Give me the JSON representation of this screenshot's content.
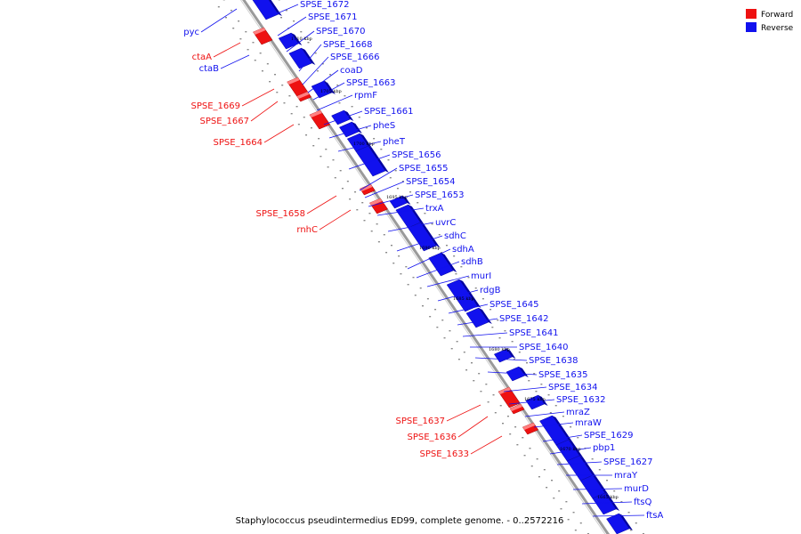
{
  "legend": {
    "forward": {
      "label": "Forward",
      "color": "#ee1111"
    },
    "reverse": {
      "label": "Reverse",
      "color": "#1111ee"
    }
  },
  "caption": "Staphylococcus pseudintermedius ED99, complete genome. - 0..2572216",
  "ticks": [
    "1710 kbp",
    "1705 kbp",
    "1700 kbp",
    "1695 kbp",
    "1690 kbp",
    "1685 kbp",
    "1680 kbp",
    "1675 kbp",
    "1670 kbp",
    "1665 kbp"
  ],
  "reverse_genes": [
    "SPSE_1672",
    "SPSE_1671",
    "SPSE_1670",
    "SPSE_1668",
    "SPSE_1666",
    "coaD",
    "SPSE_1663",
    "rpmF",
    "SPSE_1661",
    "pheS",
    "pheT",
    "SPSE_1656",
    "SPSE_1655",
    "SPSE_1654",
    "SPSE_1653",
    "trxA",
    "uvrC",
    "sdhC",
    "sdhA",
    "sdhB",
    "murI",
    "rdgB",
    "SPSE_1645",
    "SPSE_1642",
    "SPSE_1641",
    "SPSE_1640",
    "SPSE_1638",
    "SPSE_1635",
    "SPSE_1634",
    "SPSE_1632",
    "mraZ",
    "mraW",
    "SPSE_1629",
    "pbp1",
    "SPSE_1627",
    "mraY",
    "murD",
    "ftsQ",
    "ftsA"
  ],
  "left_genes": [
    {
      "name": "pyc",
      "strand": "reverse"
    },
    {
      "name": "ctaA",
      "strand": "forward"
    },
    {
      "name": "ctaB",
      "strand": "reverse"
    },
    {
      "name": "SPSE_1669",
      "strand": "forward"
    },
    {
      "name": "SPSE_1667",
      "strand": "forward"
    },
    {
      "name": "SPSE_1664",
      "strand": "forward"
    },
    {
      "name": "SPSE_1658",
      "strand": "forward"
    },
    {
      "name": "rnhC",
      "strand": "forward"
    },
    {
      "name": "SPSE_1637",
      "strand": "forward"
    },
    {
      "name": "SPSE_1636",
      "strand": "forward"
    },
    {
      "name": "SPSE_1633",
      "strand": "forward"
    }
  ]
}
